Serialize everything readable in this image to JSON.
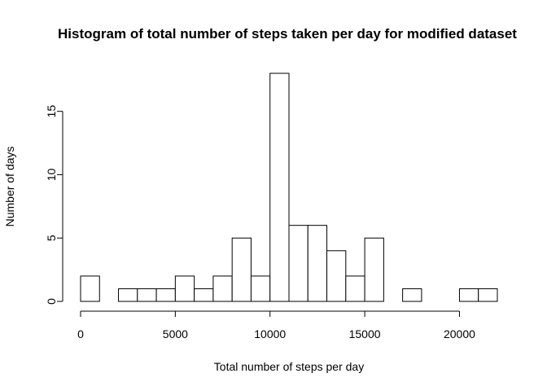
{
  "chart_data": {
    "type": "bar",
    "title": "Histogram of total number of steps taken per day for modified dataset",
    "xlabel": "Total number of steps per day",
    "ylabel": "Number of days",
    "bin_width": 1000,
    "bins": [
      {
        "start": 0,
        "end": 1000,
        "count": 2
      },
      {
        "start": 1000,
        "end": 2000,
        "count": 0
      },
      {
        "start": 2000,
        "end": 3000,
        "count": 1
      },
      {
        "start": 3000,
        "end": 4000,
        "count": 1
      },
      {
        "start": 4000,
        "end": 5000,
        "count": 1
      },
      {
        "start": 5000,
        "end": 6000,
        "count": 2
      },
      {
        "start": 6000,
        "end": 7000,
        "count": 1
      },
      {
        "start": 7000,
        "end": 8000,
        "count": 2
      },
      {
        "start": 8000,
        "end": 9000,
        "count": 5
      },
      {
        "start": 9000,
        "end": 10000,
        "count": 2
      },
      {
        "start": 10000,
        "end": 11000,
        "count": 18
      },
      {
        "start": 11000,
        "end": 12000,
        "count": 6
      },
      {
        "start": 12000,
        "end": 13000,
        "count": 6
      },
      {
        "start": 13000,
        "end": 14000,
        "count": 4
      },
      {
        "start": 14000,
        "end": 15000,
        "count": 2
      },
      {
        "start": 15000,
        "end": 16000,
        "count": 5
      },
      {
        "start": 16000,
        "end": 17000,
        "count": 0
      },
      {
        "start": 17000,
        "end": 18000,
        "count": 1
      },
      {
        "start": 18000,
        "end": 19000,
        "count": 0
      },
      {
        "start": 19000,
        "end": 20000,
        "count": 0
      },
      {
        "start": 20000,
        "end": 21000,
        "count": 1
      },
      {
        "start": 21000,
        "end": 22000,
        "count": 1
      }
    ],
    "x_ticks": [
      0,
      5000,
      10000,
      15000,
      20000
    ],
    "y_ticks": [
      0,
      5,
      10,
      15
    ],
    "xlim": [
      0,
      22000
    ],
    "ylim": [
      0,
      18
    ],
    "grid": false
  }
}
